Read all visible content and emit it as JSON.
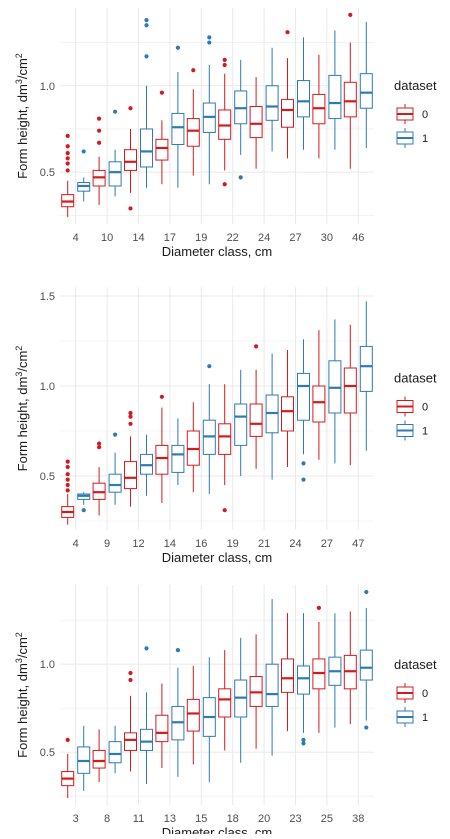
{
  "colors": {
    "0": "#D7191C",
    "1": "#2C7BB6",
    "grid": "#EBEBEB",
    "text": "#1A1A1A",
    "tick": "#4D4D4D"
  },
  "chart_data": [
    {
      "type": "box",
      "xlabel": "Diameter class, cm",
      "ylabel_main": "Form height, dm",
      "ylabel_sup1": "3",
      "ylabel_mid": "/cm",
      "ylabel_sup2": "2",
      "ylim": [
        0.2,
        1.45
      ],
      "yticks": [
        0.5,
        1.0
      ],
      "ytick_labels": [
        "0.5",
        "1.0"
      ],
      "legend_title": "dataset",
      "legend_entries": [
        "0",
        "1"
      ],
      "legend_position": "right",
      "categories": [
        "4",
        "10",
        "14",
        "17",
        "19",
        "22",
        "24",
        "27",
        "30",
        "46"
      ],
      "series": [
        {
          "name": "0",
          "boxes": [
            {
              "lower": 0.24,
              "q1": 0.3,
              "median": 0.33,
              "q3": 0.37,
              "upper": 0.45,
              "outliers": [
                0.51,
                0.55,
                0.58,
                0.61,
                0.65,
                0.71
              ]
            },
            {
              "lower": 0.31,
              "q1": 0.42,
              "median": 0.47,
              "q3": 0.51,
              "upper": 0.59,
              "outliers": [
                0.67,
                0.74,
                0.81
              ]
            },
            {
              "lower": 0.38,
              "q1": 0.51,
              "median": 0.56,
              "q3": 0.63,
              "upper": 0.75,
              "outliers": [
                0.29,
                0.87
              ]
            },
            {
              "lower": 0.43,
              "q1": 0.57,
              "median": 0.64,
              "q3": 0.69,
              "upper": 0.8,
              "outliers": [
                0.96
              ]
            },
            {
              "lower": 0.48,
              "q1": 0.65,
              "median": 0.74,
              "q3": 0.81,
              "upper": 0.98,
              "outliers": [
                1.09
              ]
            },
            {
              "lower": 0.51,
              "q1": 0.69,
              "median": 0.77,
              "q3": 0.86,
              "upper": 1.07,
              "outliers": [
                0.43,
                1.12,
                1.15
              ]
            },
            {
              "lower": 0.52,
              "q1": 0.7,
              "median": 0.78,
              "q3": 0.88,
              "upper": 1.05,
              "outliers": []
            },
            {
              "lower": 0.58,
              "q1": 0.76,
              "median": 0.86,
              "q3": 0.92,
              "upper": 1.16,
              "outliers": [
                1.31
              ]
            },
            {
              "lower": 0.58,
              "q1": 0.78,
              "median": 0.87,
              "q3": 0.95,
              "upper": 1.18,
              "outliers": []
            },
            {
              "lower": 0.52,
              "q1": 0.82,
              "median": 0.91,
              "q3": 1.02,
              "upper": 1.25,
              "outliers": [
                1.41
              ]
            }
          ]
        },
        {
          "name": "1",
          "boxes": [
            {
              "lower": 0.33,
              "q1": 0.39,
              "median": 0.42,
              "q3": 0.44,
              "upper": 0.47,
              "outliers": [
                0.62
              ]
            },
            {
              "lower": 0.36,
              "q1": 0.42,
              "median": 0.5,
              "q3": 0.56,
              "upper": 0.63,
              "outliers": [
                0.85
              ]
            },
            {
              "lower": 0.41,
              "q1": 0.53,
              "median": 0.62,
              "q3": 0.75,
              "upper": 1.0,
              "outliers": [
                1.17,
                1.35,
                1.38
              ]
            },
            {
              "lower": 0.41,
              "q1": 0.66,
              "median": 0.76,
              "q3": 0.84,
              "upper": 1.08,
              "outliers": [
                1.22
              ]
            },
            {
              "lower": 0.43,
              "q1": 0.73,
              "median": 0.82,
              "q3": 0.9,
              "upper": 1.12,
              "outliers": [
                1.25,
                1.28
              ]
            },
            {
              "lower": 0.6,
              "q1": 0.78,
              "median": 0.87,
              "q3": 0.97,
              "upper": 1.15,
              "outliers": [
                0.47
              ]
            },
            {
              "lower": 0.62,
              "q1": 0.8,
              "median": 0.88,
              "q3": 1.0,
              "upper": 1.22,
              "outliers": []
            },
            {
              "lower": 0.63,
              "q1": 0.82,
              "median": 0.91,
              "q3": 1.03,
              "upper": 1.28,
              "outliers": []
            },
            {
              "lower": 0.63,
              "q1": 0.81,
              "median": 0.9,
              "q3": 1.06,
              "upper": 1.32,
              "outliers": []
            },
            {
              "lower": 0.64,
              "q1": 0.87,
              "median": 0.96,
              "q3": 1.07,
              "upper": 1.37,
              "outliers": []
            }
          ]
        }
      ]
    },
    {
      "type": "box",
      "xlabel": "Diameter class, cm",
      "ylabel_main": "Form height, dm",
      "ylabel_sup1": "3",
      "ylabel_mid": "/cm",
      "ylabel_sup2": "2",
      "ylim": [
        0.2,
        1.55
      ],
      "yticks": [
        0.5,
        1.0,
        1.5
      ],
      "ytick_labels": [
        "0.5",
        "1.0",
        "1.5"
      ],
      "legend_title": "dataset",
      "legend_entries": [
        "0",
        "1"
      ],
      "legend_position": "right",
      "categories": [
        "4",
        "9",
        "12",
        "14",
        "16",
        "19",
        "21",
        "24",
        "27",
        "47"
      ],
      "series": [
        {
          "name": "0",
          "boxes": [
            {
              "lower": 0.23,
              "q1": 0.27,
              "median": 0.3,
              "q3": 0.33,
              "upper": 0.4,
              "outliers": [
                0.42,
                0.45,
                0.48,
                0.51,
                0.55,
                0.58
              ]
            },
            {
              "lower": 0.28,
              "q1": 0.37,
              "median": 0.41,
              "q3": 0.46,
              "upper": 0.55,
              "outliers": [
                0.66,
                0.68
              ]
            },
            {
              "lower": 0.33,
              "q1": 0.43,
              "median": 0.49,
              "q3": 0.58,
              "upper": 0.72,
              "outliers": [
                0.79,
                0.83,
                0.85
              ]
            },
            {
              "lower": 0.35,
              "q1": 0.51,
              "median": 0.6,
              "q3": 0.67,
              "upper": 0.88,
              "outliers": [
                0.94
              ]
            },
            {
              "lower": 0.41,
              "q1": 0.56,
              "median": 0.65,
              "q3": 0.75,
              "upper": 0.91,
              "outliers": []
            },
            {
              "lower": 0.45,
              "q1": 0.62,
              "median": 0.72,
              "q3": 0.79,
              "upper": 1.01,
              "outliers": [
                0.31
              ]
            },
            {
              "lower": 0.54,
              "q1": 0.72,
              "median": 0.79,
              "q3": 0.9,
              "upper": 1.09,
              "outliers": [
                1.22
              ]
            },
            {
              "lower": 0.55,
              "q1": 0.75,
              "median": 0.86,
              "q3": 0.94,
              "upper": 1.2,
              "outliers": []
            },
            {
              "lower": 0.59,
              "q1": 0.8,
              "median": 0.91,
              "q3": 1.0,
              "upper": 1.31,
              "outliers": []
            },
            {
              "lower": 0.56,
              "q1": 0.85,
              "median": 1.0,
              "q3": 1.1,
              "upper": 1.34,
              "outliers": []
            }
          ]
        },
        {
          "name": "1",
          "boxes": [
            {
              "lower": 0.34,
              "q1": 0.37,
              "median": 0.39,
              "q3": 0.4,
              "upper": 0.41,
              "outliers": [
                0.31
              ]
            },
            {
              "lower": 0.34,
              "q1": 0.41,
              "median": 0.45,
              "q3": 0.51,
              "upper": 0.63,
              "outliers": [
                0.73
              ]
            },
            {
              "lower": 0.39,
              "q1": 0.51,
              "median": 0.56,
              "q3": 0.62,
              "upper": 0.73,
              "outliers": []
            },
            {
              "lower": 0.45,
              "q1": 0.52,
              "median": 0.62,
              "q3": 0.67,
              "upper": 0.82,
              "outliers": []
            },
            {
              "lower": 0.4,
              "q1": 0.62,
              "median": 0.72,
              "q3": 0.81,
              "upper": 1.01,
              "outliers": [
                1.11
              ]
            },
            {
              "lower": 0.5,
              "q1": 0.67,
              "median": 0.83,
              "q3": 0.9,
              "upper": 1.09,
              "outliers": []
            },
            {
              "lower": 0.48,
              "q1": 0.74,
              "median": 0.85,
              "q3": 0.95,
              "upper": 1.18,
              "outliers": []
            },
            {
              "lower": 0.62,
              "q1": 0.81,
              "median": 1.0,
              "q3": 1.07,
              "upper": 1.26,
              "outliers": [
                0.57,
                0.48
              ]
            },
            {
              "lower": 0.57,
              "q1": 0.85,
              "median": 0.99,
              "q3": 1.14,
              "upper": 1.37,
              "outliers": []
            },
            {
              "lower": 0.64,
              "q1": 0.97,
              "median": 1.11,
              "q3": 1.22,
              "upper": 1.47,
              "outliers": []
            }
          ]
        }
      ]
    },
    {
      "type": "box",
      "xlabel": "Diameter class, cm",
      "ylabel_main": "Form height, dm",
      "ylabel_sup1": "3",
      "ylabel_mid": "/cm",
      "ylabel_sup2": "2",
      "ylim": [
        0.2,
        1.45
      ],
      "yticks": [
        0.5,
        1.0
      ],
      "ytick_labels": [
        "0.5",
        "1.0"
      ],
      "legend_title": "dataset",
      "legend_entries": [
        "0",
        "1"
      ],
      "legend_position": "right",
      "categories": [
        "3",
        "8",
        "11",
        "13",
        "15",
        "18",
        "20",
        "23",
        "25",
        "38"
      ],
      "series": [
        {
          "name": "0",
          "boxes": [
            {
              "lower": 0.24,
              "q1": 0.31,
              "median": 0.35,
              "q3": 0.39,
              "upper": 0.49,
              "outliers": [
                0.57
              ]
            },
            {
              "lower": 0.33,
              "q1": 0.41,
              "median": 0.45,
              "q3": 0.51,
              "upper": 0.63,
              "outliers": []
            },
            {
              "lower": 0.39,
              "q1": 0.51,
              "median": 0.57,
              "q3": 0.61,
              "upper": 0.82,
              "outliers": [
                0.91,
                0.95
              ]
            },
            {
              "lower": 0.41,
              "q1": 0.56,
              "median": 0.61,
              "q3": 0.71,
              "upper": 0.89,
              "outliers": []
            },
            {
              "lower": 0.43,
              "q1": 0.62,
              "median": 0.72,
              "q3": 0.8,
              "upper": 0.99,
              "outliers": []
            },
            {
              "lower": 0.51,
              "q1": 0.7,
              "median": 0.8,
              "q3": 0.86,
              "upper": 1.08,
              "outliers": []
            },
            {
              "lower": 0.52,
              "q1": 0.76,
              "median": 0.84,
              "q3": 0.93,
              "upper": 1.17,
              "outliers": []
            },
            {
              "lower": 0.62,
              "q1": 0.84,
              "median": 0.92,
              "q3": 1.03,
              "upper": 1.29,
              "outliers": []
            },
            {
              "lower": 0.61,
              "q1": 0.86,
              "median": 0.95,
              "q3": 1.03,
              "upper": 1.24,
              "outliers": [
                1.32
              ]
            },
            {
              "lower": 0.66,
              "q1": 0.86,
              "median": 0.96,
              "q3": 1.05,
              "upper": 1.3,
              "outliers": []
            }
          ]
        },
        {
          "name": "1",
          "boxes": [
            {
              "lower": 0.28,
              "q1": 0.38,
              "median": 0.45,
              "q3": 0.53,
              "upper": 0.65,
              "outliers": []
            },
            {
              "lower": 0.38,
              "q1": 0.44,
              "median": 0.49,
              "q3": 0.56,
              "upper": 0.65,
              "outliers": []
            },
            {
              "lower": 0.32,
              "q1": 0.51,
              "median": 0.56,
              "q3": 0.63,
              "upper": 0.84,
              "outliers": [
                1.09
              ]
            },
            {
              "lower": 0.36,
              "q1": 0.57,
              "median": 0.67,
              "q3": 0.76,
              "upper": 0.98,
              "outliers": [
                1.08
              ]
            },
            {
              "lower": 0.33,
              "q1": 0.59,
              "median": 0.7,
              "q3": 0.81,
              "upper": 1.04,
              "outliers": []
            },
            {
              "lower": 0.44,
              "q1": 0.7,
              "median": 0.81,
              "q3": 0.91,
              "upper": 1.15,
              "outliers": []
            },
            {
              "lower": 0.48,
              "q1": 0.76,
              "median": 0.83,
              "q3": 1.0,
              "upper": 1.37,
              "outliers": []
            },
            {
              "lower": 0.61,
              "q1": 0.83,
              "median": 0.92,
              "q3": 0.99,
              "upper": 1.29,
              "outliers": [
                0.55,
                0.57
              ]
            },
            {
              "lower": 0.64,
              "q1": 0.88,
              "median": 0.96,
              "q3": 1.04,
              "upper": 1.29,
              "outliers": []
            },
            {
              "lower": 0.68,
              "q1": 0.91,
              "median": 0.98,
              "q3": 1.08,
              "upper": 1.32,
              "outliers": [
                0.64,
                1.41
              ]
            }
          ]
        }
      ]
    }
  ]
}
